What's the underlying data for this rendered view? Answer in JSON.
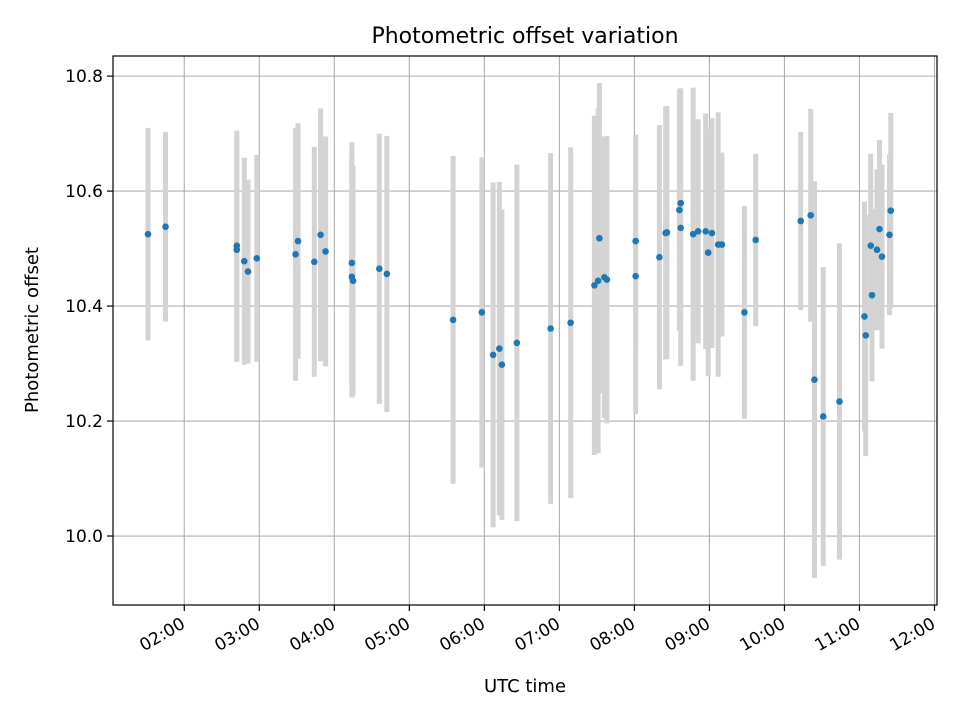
{
  "chart_data": {
    "type": "scatter",
    "title": "Photometric offset variation",
    "xlabel": "UTC time",
    "ylabel": "Photometric offset",
    "x_ticks": [
      "02:00",
      "03:00",
      "04:00",
      "05:00",
      "06:00",
      "07:00",
      "08:00",
      "09:00",
      "10:00",
      "11:00",
      "12:00"
    ],
    "y_ticks": [
      "10.0",
      "10.2",
      "10.4",
      "10.6",
      "10.8"
    ],
    "xlim": [
      "01:03",
      "12:02"
    ],
    "ylim": [
      9.88,
      10.835
    ],
    "grid": true,
    "colors": {
      "marker": "#1f77b4",
      "errorbar": "#d3d3d3",
      "grid": "#b0b0b0"
    },
    "series": [
      {
        "x": [
          "01:31",
          "01:45",
          "02:42",
          "02:42",
          "02:48",
          "02:51",
          "02:58",
          "03:29",
          "03:31",
          "03:44",
          "03:49",
          "03:53",
          "04:14",
          "04:14",
          "04:15",
          "04:36",
          "04:42",
          "05:35",
          "05:58",
          "06:07",
          "06:12",
          "06:14",
          "06:26",
          "06:53",
          "07:09",
          "07:28",
          "07:31",
          "07:32",
          "07:36",
          "07:38",
          "08:01",
          "08:01",
          "08:20",
          "08:25",
          "08:26",
          "08:36",
          "08:37",
          "08:37",
          "08:47",
          "08:51",
          "08:57",
          "08:59",
          "09:02",
          "09:07",
          "09:10",
          "09:28",
          "09:37",
          "10:13",
          "10:21",
          "10:24",
          "10:31",
          "10:44",
          "11:04",
          "11:05",
          "11:09",
          "11:10",
          "11:14",
          "11:16",
          "11:18",
          "11:24",
          "11:25"
        ],
        "y": [
          10.525,
          10.538,
          10.505,
          10.498,
          10.478,
          10.46,
          10.483,
          10.49,
          10.513,
          10.477,
          10.524,
          10.495,
          10.475,
          10.451,
          10.444,
          10.465,
          10.456,
          10.376,
          10.389,
          10.315,
          10.326,
          10.298,
          10.336,
          10.361,
          10.371,
          10.436,
          10.444,
          10.518,
          10.45,
          10.446,
          10.513,
          10.452,
          10.485,
          10.527,
          10.528,
          10.567,
          10.579,
          10.536,
          10.525,
          10.53,
          10.53,
          10.493,
          10.527,
          10.507,
          10.507,
          10.389,
          10.515,
          10.548,
          10.558,
          10.272,
          10.208,
          10.234,
          10.382,
          10.349,
          10.505,
          10.419,
          10.498,
          10.534,
          10.486,
          10.524,
          10.566
        ],
        "yerr": [
          0.185,
          0.165,
          0.2,
          0.195,
          0.18,
          0.16,
          0.18,
          0.22,
          0.205,
          0.2,
          0.22,
          0.2,
          0.21,
          0.21,
          0.2,
          0.235,
          0.24,
          0.285,
          0.27,
          0.3,
          0.29,
          0.27,
          0.31,
          0.305,
          0.305,
          0.295,
          0.3,
          0.27,
          0.245,
          0.25,
          0.185,
          0.24,
          0.23,
          0.22,
          0.22,
          0.21,
          0.2,
          0.24,
          0.255,
          0.195,
          0.205,
          0.215,
          0.2,
          0.23,
          0.16,
          0.185,
          0.15,
          0.155,
          0.185,
          0.345,
          0.26,
          0.275,
          0.2,
          0.21,
          0.16,
          0.15,
          0.14,
          0.155,
          0.16,
          0.14,
          0.17
        ]
      }
    ]
  }
}
